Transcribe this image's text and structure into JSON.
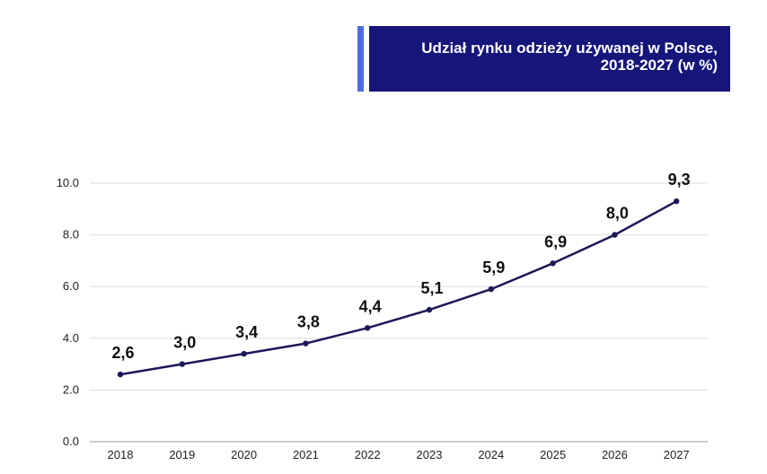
{
  "colors": {
    "title_bg": "#16157a",
    "title_accent": "#4f6be6",
    "line": "#1c1857",
    "grid": "#dddddd"
  },
  "chart_data": {
    "type": "line",
    "title": "Udział rynku odzieży używanej w Polsce, 2018-2027 (w %)",
    "categories": [
      "2018",
      "2019",
      "2020",
      "2021",
      "2022",
      "2023",
      "2024",
      "2025",
      "2026",
      "2027"
    ],
    "series": [
      {
        "values": [
          2.6,
          3.0,
          3.4,
          3.8,
          4.4,
          5.1,
          5.9,
          6.9,
          8.0,
          9.3
        ],
        "labels": [
          "2,6",
          "3,0",
          "3,4",
          "3,8",
          "4,4",
          "5,1",
          "5,9",
          "6,9",
          "8,0",
          "9,3"
        ]
      }
    ],
    "yticks": [
      "0.0",
      "2.0",
      "4.0",
      "6.0",
      "8.0",
      "10.0"
    ],
    "ylim": [
      0,
      10
    ],
    "grid": true,
    "legend": "none"
  }
}
